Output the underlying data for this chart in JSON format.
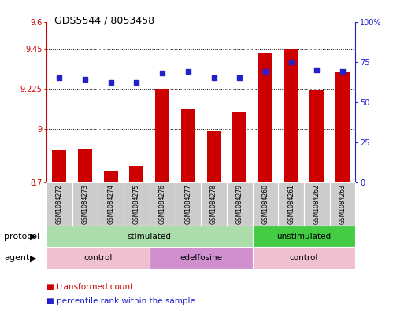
{
  "title": "GDS5544 / 8053458",
  "samples": [
    "GSM1084272",
    "GSM1084273",
    "GSM1084274",
    "GSM1084275",
    "GSM1084276",
    "GSM1084277",
    "GSM1084278",
    "GSM1084279",
    "GSM1084260",
    "GSM1084261",
    "GSM1084262",
    "GSM1084263"
  ],
  "bar_values": [
    8.88,
    8.89,
    8.76,
    8.79,
    9.225,
    9.11,
    8.99,
    9.09,
    9.42,
    9.45,
    9.22,
    9.32
  ],
  "dot_values": [
    65,
    64,
    62,
    62,
    68,
    69,
    65,
    65,
    69,
    75,
    70,
    69
  ],
  "bar_base": 8.7,
  "ylim_left": [
    8.7,
    9.6
  ],
  "ylim_right": [
    0,
    100
  ],
  "yticks_left": [
    8.7,
    9.0,
    9.225,
    9.45,
    9.6
  ],
  "ytick_labels_left": [
    "8.7",
    "9",
    "9.225",
    "9.45",
    "9.6"
  ],
  "yticks_right": [
    0,
    25,
    50,
    75,
    100
  ],
  "ytick_labels_right": [
    "0",
    "25",
    "50",
    "75",
    "100%"
  ],
  "hlines": [
    9.0,
    9.225,
    9.45
  ],
  "bar_color": "#cc0000",
  "dot_color": "#2222cc",
  "bg_color": "#ffffff",
  "protocol_groups": [
    {
      "label": "stimulated",
      "start": 0,
      "end": 8,
      "color": "#aaddaa"
    },
    {
      "label": "unstimulated",
      "start": 8,
      "end": 12,
      "color": "#44cc44"
    }
  ],
  "agent_groups": [
    {
      "label": "control",
      "start": 0,
      "end": 4,
      "color": "#f0c0d0"
    },
    {
      "label": "edelfosine",
      "start": 4,
      "end": 8,
      "color": "#d090d0"
    },
    {
      "label": "control",
      "start": 8,
      "end": 12,
      "color": "#f0c0d0"
    }
  ],
  "legend_items": [
    {
      "label": "transformed count",
      "color": "#cc0000"
    },
    {
      "label": "percentile rank within the sample",
      "color": "#2222cc"
    }
  ],
  "protocol_label": "protocol",
  "agent_label": "agent"
}
